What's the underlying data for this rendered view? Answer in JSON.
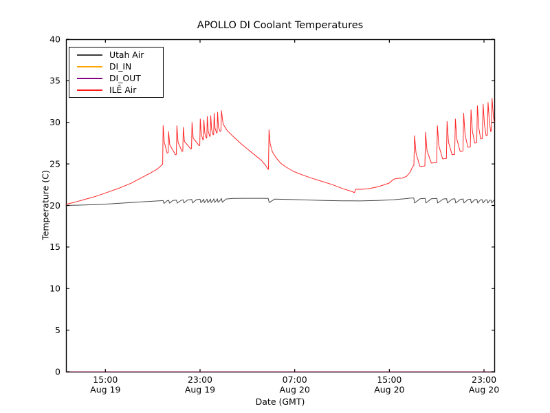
{
  "chart_data": {
    "type": "line",
    "title": "APOLLO DI Coolant Temperatures",
    "xlabel": "Date (GMT)",
    "ylabel": "Temperature (C)",
    "ylim": [
      0,
      40
    ],
    "yticks": [
      0,
      5,
      10,
      15,
      20,
      25,
      30,
      35,
      40
    ],
    "x_unit": "hours since Aug 19 00:00 GMT",
    "xlim": [
      11.67,
      47.87
    ],
    "xticks": [
      {
        "t": 15,
        "time": "15:00",
        "date": "Aug 19"
      },
      {
        "t": 23,
        "time": "23:00",
        "date": "Aug 19"
      },
      {
        "t": 31,
        "time": "07:00",
        "date": "Aug 20"
      },
      {
        "t": 39,
        "time": "15:00",
        "date": "Aug 20"
      },
      {
        "t": 47,
        "time": "23:00",
        "date": "Aug 20"
      }
    ],
    "grid": false,
    "legend_position": "upper left",
    "series": [
      {
        "name": "Utah Air",
        "color": "#3a3a3a",
        "points": [
          [
            11.67,
            20.0
          ],
          [
            13.0,
            20.05
          ],
          [
            14.5,
            20.12
          ],
          [
            16.0,
            20.25
          ],
          [
            17.5,
            20.38
          ],
          [
            18.8,
            20.5
          ],
          [
            19.8,
            20.58
          ],
          [
            19.88,
            20.6
          ],
          [
            19.95,
            20.25
          ],
          [
            20.2,
            20.55
          ],
          [
            20.35,
            20.62
          ],
          [
            20.42,
            20.28
          ],
          [
            20.7,
            20.6
          ],
          [
            21.0,
            20.65
          ],
          [
            21.07,
            20.28
          ],
          [
            21.4,
            20.62
          ],
          [
            21.57,
            20.68
          ],
          [
            21.64,
            20.3
          ],
          [
            21.95,
            20.66
          ],
          [
            22.3,
            20.72
          ],
          [
            22.37,
            20.3
          ],
          [
            22.7,
            20.7
          ],
          [
            23.0,
            20.75
          ],
          [
            23.07,
            20.33
          ],
          [
            23.25,
            20.62
          ],
          [
            23.3,
            20.75
          ],
          [
            23.37,
            20.33
          ],
          [
            23.53,
            20.62
          ],
          [
            23.59,
            20.76
          ],
          [
            23.66,
            20.34
          ],
          [
            23.82,
            20.62
          ],
          [
            23.88,
            20.78
          ],
          [
            23.95,
            20.35
          ],
          [
            24.11,
            20.63
          ],
          [
            24.17,
            20.8
          ],
          [
            24.24,
            20.36
          ],
          [
            24.4,
            20.64
          ],
          [
            24.46,
            20.8
          ],
          [
            24.53,
            20.37
          ],
          [
            24.75,
            20.7
          ],
          [
            24.81,
            20.85
          ],
          [
            24.88,
            20.38
          ],
          [
            25.2,
            20.78
          ],
          [
            25.8,
            20.85
          ],
          [
            27.0,
            20.86
          ],
          [
            28.3,
            20.86
          ],
          [
            28.76,
            20.85
          ],
          [
            28.84,
            20.35
          ],
          [
            29.3,
            20.76
          ],
          [
            30.5,
            20.72
          ],
          [
            32.0,
            20.66
          ],
          [
            33.5,
            20.6
          ],
          [
            35.0,
            20.56
          ],
          [
            36.5,
            20.55
          ],
          [
            38.0,
            20.6
          ],
          [
            39.3,
            20.68
          ],
          [
            40.3,
            20.8
          ],
          [
            40.9,
            20.9
          ],
          [
            41.06,
            20.9
          ],
          [
            41.13,
            20.3
          ],
          [
            41.6,
            20.8
          ],
          [
            42.02,
            20.86
          ],
          [
            42.09,
            20.3
          ],
          [
            42.55,
            20.8
          ],
          [
            43.02,
            20.85
          ],
          [
            43.09,
            20.3
          ],
          [
            43.55,
            20.78
          ],
          [
            43.84,
            20.82
          ],
          [
            43.91,
            20.3
          ],
          [
            44.3,
            20.76
          ],
          [
            44.54,
            20.8
          ],
          [
            44.61,
            20.3
          ],
          [
            45.0,
            20.74
          ],
          [
            45.24,
            20.78
          ],
          [
            45.31,
            20.3
          ],
          [
            45.65,
            20.72
          ],
          [
            45.86,
            20.75
          ],
          [
            45.93,
            20.3
          ],
          [
            46.22,
            20.7
          ],
          [
            46.4,
            20.72
          ],
          [
            46.47,
            20.3
          ],
          [
            46.7,
            20.68
          ],
          [
            46.84,
            20.7
          ],
          [
            46.91,
            20.3
          ],
          [
            47.12,
            20.66
          ],
          [
            47.25,
            20.68
          ],
          [
            47.32,
            20.3
          ],
          [
            47.5,
            20.63
          ],
          [
            47.59,
            20.65
          ],
          [
            47.66,
            20.3
          ],
          [
            47.82,
            20.62
          ],
          [
            47.87,
            20.63
          ]
        ]
      },
      {
        "name": "DI_IN",
        "color": "#ffa500",
        "points": [
          [
            11.67,
            0
          ],
          [
            47.87,
            0
          ]
        ]
      },
      {
        "name": "DI_OUT",
        "color": "#800080",
        "points": [
          [
            11.67,
            0
          ],
          [
            47.87,
            0
          ]
        ]
      },
      {
        "name": "ILĒ Air",
        "color": "#ff1a1a",
        "points": [
          [
            11.67,
            20.15
          ],
          [
            12.3,
            20.35
          ],
          [
            13.2,
            20.7
          ],
          [
            14.2,
            21.1
          ],
          [
            15.2,
            21.6
          ],
          [
            16.2,
            22.1
          ],
          [
            17.2,
            22.7
          ],
          [
            18.0,
            23.3
          ],
          [
            18.8,
            23.9
          ],
          [
            19.4,
            24.4
          ],
          [
            19.8,
            24.9
          ],
          [
            19.84,
            24.95
          ],
          [
            19.88,
            29.6
          ],
          [
            19.98,
            27.6
          ],
          [
            20.22,
            26.3
          ],
          [
            20.3,
            26.35
          ],
          [
            20.34,
            28.9
          ],
          [
            20.44,
            27.3
          ],
          [
            20.92,
            26.1
          ],
          [
            21.0,
            26.15
          ],
          [
            21.04,
            29.6
          ],
          [
            21.14,
            27.6
          ],
          [
            21.48,
            26.5
          ],
          [
            21.54,
            26.55
          ],
          [
            21.58,
            29.4
          ],
          [
            21.68,
            27.7
          ],
          [
            22.22,
            26.8
          ],
          [
            22.28,
            26.85
          ],
          [
            22.32,
            30.0
          ],
          [
            22.42,
            28.1
          ],
          [
            22.92,
            27.2
          ],
          [
            22.98,
            27.25
          ],
          [
            23.02,
            30.4
          ],
          [
            23.1,
            28.6
          ],
          [
            23.24,
            27.9
          ],
          [
            23.28,
            27.95
          ],
          [
            23.32,
            30.3
          ],
          [
            23.4,
            28.7
          ],
          [
            23.53,
            28.1
          ],
          [
            23.57,
            28.15
          ],
          [
            23.61,
            30.7
          ],
          [
            23.69,
            28.9
          ],
          [
            23.82,
            28.3
          ],
          [
            23.86,
            28.35
          ],
          [
            23.9,
            30.8
          ],
          [
            23.98,
            29.1
          ],
          [
            24.11,
            28.5
          ],
          [
            24.15,
            28.55
          ],
          [
            24.19,
            31.1
          ],
          [
            24.27,
            29.3
          ],
          [
            24.4,
            28.7
          ],
          [
            24.44,
            28.75
          ],
          [
            24.48,
            31.2
          ],
          [
            24.56,
            29.4
          ],
          [
            24.7,
            28.9
          ],
          [
            24.76,
            28.95
          ],
          [
            24.81,
            31.4
          ],
          [
            24.95,
            29.8
          ],
          [
            25.3,
            29.0
          ],
          [
            25.8,
            28.3
          ],
          [
            26.4,
            27.5
          ],
          [
            27.0,
            26.8
          ],
          [
            27.6,
            26.1
          ],
          [
            28.2,
            25.4
          ],
          [
            28.55,
            24.8
          ],
          [
            28.72,
            24.4
          ],
          [
            28.78,
            24.35
          ],
          [
            28.83,
            29.1
          ],
          [
            28.93,
            27.4
          ],
          [
            29.1,
            26.5
          ],
          [
            29.4,
            25.8
          ],
          [
            29.8,
            25.1
          ],
          [
            30.3,
            24.6
          ],
          [
            30.9,
            24.1
          ],
          [
            31.6,
            23.7
          ],
          [
            32.4,
            23.3
          ],
          [
            33.3,
            22.9
          ],
          [
            34.2,
            22.5
          ],
          [
            35.1,
            22.0
          ],
          [
            35.8,
            21.7
          ],
          [
            36.05,
            21.55
          ],
          [
            36.15,
            21.95
          ],
          [
            36.6,
            21.95
          ],
          [
            37.2,
            22.0
          ],
          [
            37.9,
            22.2
          ],
          [
            38.5,
            22.45
          ],
          [
            39.0,
            22.7
          ],
          [
            39.35,
            23.15
          ],
          [
            39.6,
            23.25
          ],
          [
            40.1,
            23.3
          ],
          [
            40.45,
            23.5
          ],
          [
            40.75,
            24.0
          ],
          [
            40.98,
            24.7
          ],
          [
            41.07,
            24.8
          ],
          [
            41.13,
            28.4
          ],
          [
            41.25,
            26.3
          ],
          [
            41.58,
            24.7
          ],
          [
            42.0,
            24.75
          ],
          [
            42.06,
            28.8
          ],
          [
            42.18,
            26.6
          ],
          [
            42.55,
            25.1
          ],
          [
            43.0,
            25.15
          ],
          [
            43.06,
            29.6
          ],
          [
            43.18,
            27.2
          ],
          [
            43.5,
            25.6
          ],
          [
            43.82,
            25.65
          ],
          [
            43.88,
            30.1
          ],
          [
            44.0,
            27.6
          ],
          [
            44.3,
            26.1
          ],
          [
            44.52,
            26.15
          ],
          [
            44.58,
            30.4
          ],
          [
            44.7,
            28.0
          ],
          [
            44.98,
            26.5
          ],
          [
            45.22,
            26.55
          ],
          [
            45.28,
            31.1
          ],
          [
            45.4,
            28.5
          ],
          [
            45.64,
            27.0
          ],
          [
            45.84,
            27.05
          ],
          [
            45.9,
            31.5
          ],
          [
            46.02,
            28.9
          ],
          [
            46.22,
            27.5
          ],
          [
            46.38,
            27.55
          ],
          [
            46.44,
            32.0
          ],
          [
            46.56,
            29.3
          ],
          [
            46.72,
            28.0
          ],
          [
            46.86,
            28.05
          ],
          [
            46.92,
            32.2
          ],
          [
            47.04,
            29.7
          ],
          [
            47.18,
            28.4
          ],
          [
            47.28,
            28.45
          ],
          [
            47.34,
            32.4
          ],
          [
            47.46,
            30.0
          ],
          [
            47.56,
            28.9
          ],
          [
            47.62,
            28.95
          ],
          [
            47.68,
            32.9
          ],
          [
            47.8,
            30.6
          ],
          [
            47.87,
            30.0
          ]
        ]
      }
    ]
  }
}
